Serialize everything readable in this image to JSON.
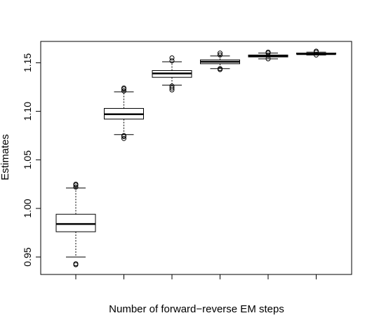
{
  "chart_data": {
    "type": "boxplot",
    "title": "",
    "xlabel": "Number of forward−reverse EM steps",
    "ylabel": "Estimates",
    "ylim": [
      0.932,
      1.172
    ],
    "yticks": [
      0.95,
      1.0,
      1.05,
      1.1,
      1.15
    ],
    "ytick_labels": [
      "0.95",
      "1.00",
      "1.05",
      "1.10",
      "1.15"
    ],
    "xtick_labels": [],
    "grid": false,
    "boxes": [
      {
        "whisker_low": 0.95,
        "q1": 0.976,
        "median": 0.984,
        "q3": 0.994,
        "whisker_high": 1.021,
        "outliers": [
          0.942,
          0.943,
          1.022,
          1.024,
          1.025
        ]
      },
      {
        "whisker_low": 1.076,
        "q1": 1.092,
        "median": 1.097,
        "q3": 1.103,
        "whisker_high": 1.12,
        "outliers": [
          1.072,
          1.074,
          1.075,
          1.121,
          1.123,
          1.124
        ]
      },
      {
        "whisker_low": 1.127,
        "q1": 1.135,
        "median": 1.139,
        "q3": 1.142,
        "whisker_high": 1.151,
        "outliers": [
          1.122,
          1.124,
          1.126,
          1.152,
          1.155
        ]
      },
      {
        "whisker_low": 1.144,
        "q1": 1.149,
        "median": 1.151,
        "q3": 1.153,
        "whisker_high": 1.157,
        "outliers": [
          1.143,
          1.144,
          1.158,
          1.16
        ]
      },
      {
        "whisker_low": 1.154,
        "q1": 1.156,
        "median": 1.157,
        "q3": 1.158,
        "whisker_high": 1.16,
        "outliers": [
          1.154,
          1.16,
          1.161
        ]
      },
      {
        "whisker_low": 1.158,
        "q1": 1.159,
        "median": 1.159,
        "q3": 1.16,
        "whisker_high": 1.161,
        "outliers": [
          1.158,
          1.161,
          1.162
        ]
      }
    ],
    "colors": {
      "box_fill": "#ffffff",
      "stroke": "#000000"
    }
  }
}
